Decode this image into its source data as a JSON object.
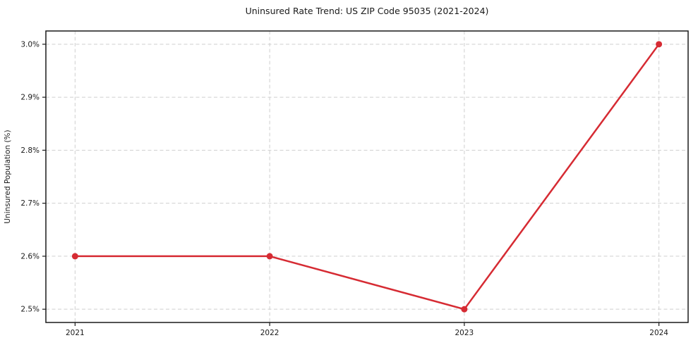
{
  "chart_data": {
    "type": "line",
    "title": "Uninsured Rate Trend: US ZIP Code 95035 (2021-2024)",
    "xlabel": "",
    "ylabel": "Uninsured Population (%)",
    "x": [
      2021,
      2022,
      2023,
      2024
    ],
    "x_tick_labels": [
      "2021",
      "2022",
      "2023",
      "2024"
    ],
    "y_ticks": [
      2.5,
      2.6,
      2.7,
      2.8,
      2.9,
      3.0
    ],
    "y_tick_labels": [
      "2.5%",
      "2.6%",
      "2.7%",
      "2.8%",
      "2.9%",
      "3.0%"
    ],
    "series": [
      {
        "name": "Uninsured Rate",
        "values": [
          2.6,
          2.6,
          2.5,
          3.0
        ]
      }
    ],
    "xlim": [
      2020.85,
      2024.15
    ],
    "ylim": [
      2.475,
      3.025
    ],
    "grid": true,
    "grid_style": "dashed",
    "legend_position": "none",
    "colors": {
      "line": "#d62b33",
      "marker": "#d62b33",
      "grid": "#cfcfcf",
      "spine": "#1a1a1a",
      "tick_text": "#1a1a1a",
      "title_text": "#1a1a1a",
      "background": "#ffffff"
    }
  }
}
